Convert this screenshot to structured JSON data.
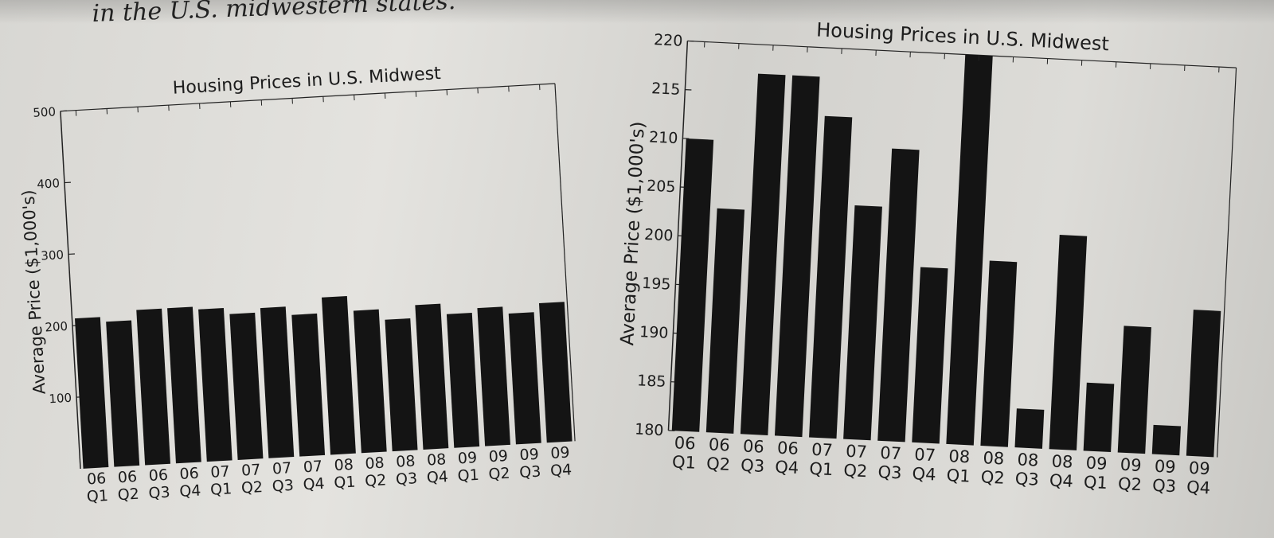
{
  "page_text": {
    "heading": "in the U.S. midwestern states."
  },
  "colors": {
    "bar": "#141414",
    "paper": "#dddcd8"
  },
  "chart_data": [
    {
      "type": "bar",
      "title": "Housing Prices in U.S. Midwest",
      "xlabel": "",
      "ylabel": "Average Price ($1,000's)",
      "ylim": [
        0,
        500
      ],
      "yticks": [
        100,
        200,
        300,
        400,
        500
      ],
      "categories": [
        [
          "06",
          "Q1"
        ],
        [
          "06",
          "Q2"
        ],
        [
          "06",
          "Q3"
        ],
        [
          "06",
          "Q4"
        ],
        [
          "07",
          "Q1"
        ],
        [
          "07",
          "Q2"
        ],
        [
          "07",
          "Q3"
        ],
        [
          "07",
          "Q4"
        ],
        [
          "08",
          "Q1"
        ],
        [
          "08",
          "Q2"
        ],
        [
          "08",
          "Q3"
        ],
        [
          "08",
          "Q4"
        ],
        [
          "09",
          "Q1"
        ],
        [
          "09",
          "Q2"
        ],
        [
          "09",
          "Q3"
        ],
        [
          "09",
          "Q4"
        ]
      ],
      "values": [
        210,
        203,
        217,
        217,
        213,
        204,
        210,
        198,
        220,
        199,
        184,
        202,
        187,
        193,
        183,
        195
      ],
      "grid": false,
      "legend": "none"
    },
    {
      "type": "bar",
      "title": "Housing Prices in U.S. Midwest",
      "xlabel": "",
      "ylabel": "Average Price ($1,000's)",
      "ylim": [
        180,
        220
      ],
      "yticks": [
        180,
        185,
        190,
        195,
        200,
        205,
        210,
        215,
        220
      ],
      "categories": [
        [
          "06",
          "Q1"
        ],
        [
          "06",
          "Q2"
        ],
        [
          "06",
          "Q3"
        ],
        [
          "06",
          "Q4"
        ],
        [
          "07",
          "Q1"
        ],
        [
          "07",
          "Q2"
        ],
        [
          "07",
          "Q3"
        ],
        [
          "07",
          "Q4"
        ],
        [
          "08",
          "Q1"
        ],
        [
          "08",
          "Q2"
        ],
        [
          "08",
          "Q3"
        ],
        [
          "08",
          "Q4"
        ],
        [
          "09",
          "Q1"
        ],
        [
          "09",
          "Q2"
        ],
        [
          "09",
          "Q3"
        ],
        [
          "09",
          "Q4"
        ]
      ],
      "values": [
        210,
        203,
        217,
        217,
        213,
        204,
        210,
        198,
        220,
        199,
        184,
        202,
        187,
        193,
        183,
        195
      ],
      "grid": false,
      "legend": "none"
    }
  ]
}
